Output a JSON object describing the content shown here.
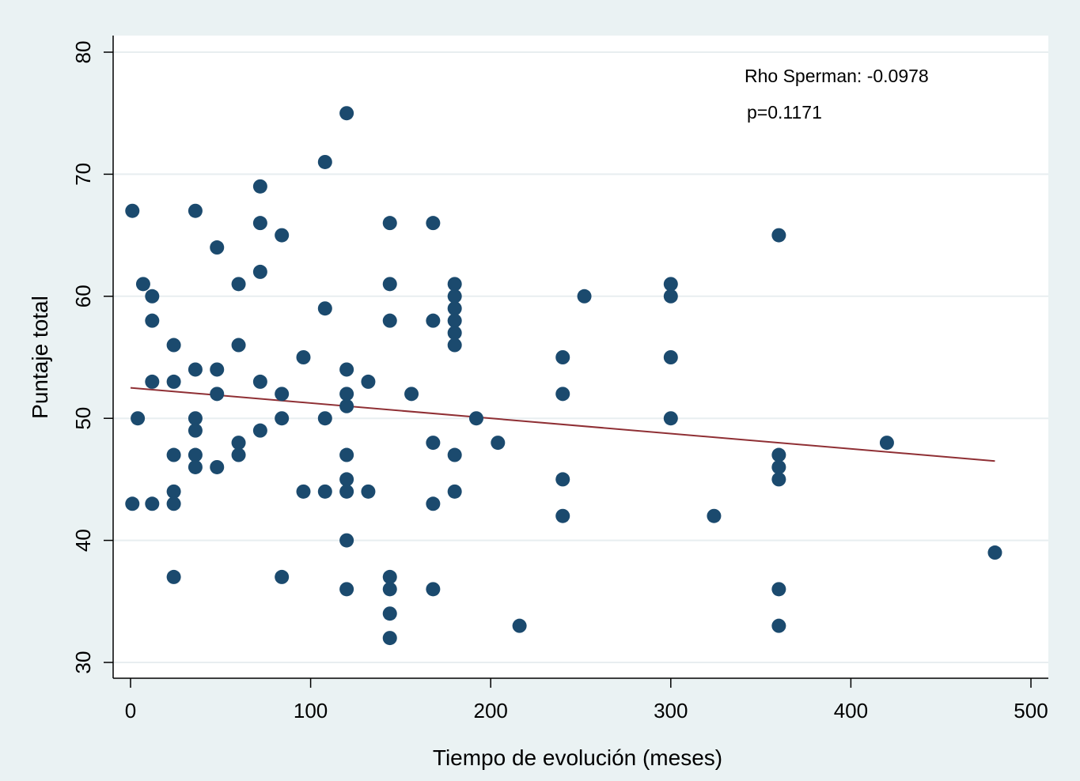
{
  "chart_data": {
    "type": "scatter",
    "title": "",
    "xlabel": "Tiempo de evolución (meses)",
    "ylabel": "Puntaje total",
    "xlim": [
      0,
      500
    ],
    "ylim": [
      30,
      80
    ],
    "x_ticks": [
      "0",
      "100",
      "200",
      "300",
      "400",
      "500"
    ],
    "y_ticks": [
      "30",
      "40",
      "50",
      "60",
      "70",
      "80"
    ],
    "grid": true,
    "annotations": [
      "Rho Sperman: -0.0978",
      "p=0.1171"
    ],
    "marker_color": "#1b4a6e",
    "fit_line_color": "#8f2f34",
    "fit_line": {
      "x": [
        0,
        480
      ],
      "y": [
        52.5,
        46.5
      ]
    },
    "points": [
      [
        1,
        67
      ],
      [
        1,
        43
      ],
      [
        4,
        50
      ],
      [
        7,
        61
      ],
      [
        12,
        60
      ],
      [
        12,
        58
      ],
      [
        12,
        53
      ],
      [
        12,
        43
      ],
      [
        24,
        56
      ],
      [
        24,
        53
      ],
      [
        24,
        47
      ],
      [
        24,
        44
      ],
      [
        24,
        43
      ],
      [
        24,
        37
      ],
      [
        36,
        67
      ],
      [
        36,
        54
      ],
      [
        36,
        50
      ],
      [
        36,
        49
      ],
      [
        36,
        47
      ],
      [
        36,
        46
      ],
      [
        48,
        64
      ],
      [
        48,
        54
      ],
      [
        48,
        52
      ],
      [
        48,
        46
      ],
      [
        60,
        61
      ],
      [
        60,
        56
      ],
      [
        60,
        48
      ],
      [
        60,
        47
      ],
      [
        72,
        69
      ],
      [
        72,
        66
      ],
      [
        72,
        62
      ],
      [
        72,
        53
      ],
      [
        72,
        49
      ],
      [
        84,
        65
      ],
      [
        84,
        52
      ],
      [
        84,
        50
      ],
      [
        84,
        37
      ],
      [
        96,
        55
      ],
      [
        96,
        44
      ],
      [
        108,
        71
      ],
      [
        108,
        59
      ],
      [
        108,
        50
      ],
      [
        108,
        44
      ],
      [
        120,
        75
      ],
      [
        120,
        54
      ],
      [
        120,
        52
      ],
      [
        120,
        51
      ],
      [
        120,
        47
      ],
      [
        120,
        45
      ],
      [
        120,
        44
      ],
      [
        120,
        40
      ],
      [
        120,
        36
      ],
      [
        132,
        53
      ],
      [
        132,
        44
      ],
      [
        144,
        66
      ],
      [
        144,
        61
      ],
      [
        144,
        58
      ],
      [
        144,
        37
      ],
      [
        144,
        36
      ],
      [
        144,
        34
      ],
      [
        144,
        32
      ],
      [
        156,
        52
      ],
      [
        168,
        66
      ],
      [
        168,
        58
      ],
      [
        168,
        48
      ],
      [
        168,
        43
      ],
      [
        168,
        36
      ],
      [
        180,
        61
      ],
      [
        180,
        60
      ],
      [
        180,
        59
      ],
      [
        180,
        58
      ],
      [
        180,
        57
      ],
      [
        180,
        56
      ],
      [
        180,
        47
      ],
      [
        180,
        44
      ],
      [
        192,
        50
      ],
      [
        204,
        48
      ],
      [
        216,
        33
      ],
      [
        240,
        55
      ],
      [
        240,
        52
      ],
      [
        240,
        45
      ],
      [
        240,
        42
      ],
      [
        252,
        60
      ],
      [
        300,
        61
      ],
      [
        300,
        60
      ],
      [
        300,
        55
      ],
      [
        300,
        50
      ],
      [
        324,
        42
      ],
      [
        360,
        65
      ],
      [
        360,
        47
      ],
      [
        360,
        46
      ],
      [
        360,
        45
      ],
      [
        360,
        36
      ],
      [
        360,
        33
      ],
      [
        420,
        48
      ],
      [
        480,
        39
      ]
    ]
  }
}
